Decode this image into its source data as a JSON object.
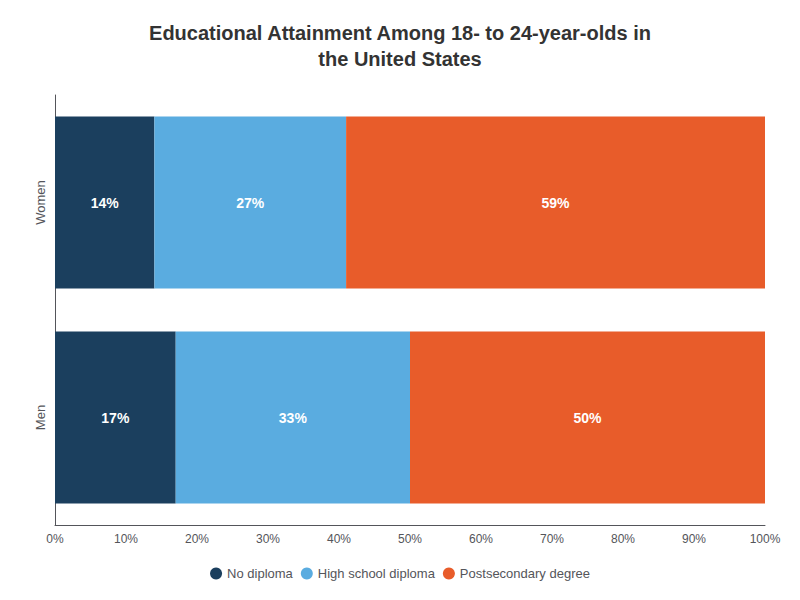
{
  "chart_data": {
    "type": "bar",
    "title": "Educational Attainment Among 18- to 24-year-olds in\nthe United States",
    "orientation": "horizontal",
    "stacked": true,
    "data_labels": true,
    "grid": false,
    "legend": "bottom",
    "categories": [
      "Men",
      "Women"
    ],
    "series": [
      {
        "name": "No diploma",
        "color": "#1b3f5e",
        "values": [
          17,
          14
        ],
        "value_labels": [
          "17%",
          "14%"
        ]
      },
      {
        "name": "High school diploma",
        "color": "#5aace0",
        "values": [
          33,
          27
        ],
        "value_labels": [
          "33%",
          "27%"
        ]
      },
      {
        "name": "Postsecondary degree",
        "color": "#e85c2a",
        "values": [
          50,
          59
        ],
        "value_labels": [
          "50%",
          "59%"
        ]
      }
    ],
    "xlim": [
      0,
      100
    ],
    "xticks": [
      {
        "value": 0,
        "label": "0%"
      },
      {
        "value": 10,
        "label": "10%"
      },
      {
        "value": 20,
        "label": "20%"
      },
      {
        "value": 30,
        "label": "30%"
      },
      {
        "value": 40,
        "label": "40%"
      },
      {
        "value": 50,
        "label": "50%"
      },
      {
        "value": 60,
        "label": "60%"
      },
      {
        "value": 70,
        "label": "70%"
      },
      {
        "value": 80,
        "label": "80%"
      },
      {
        "value": 90,
        "label": "90%"
      },
      {
        "value": 100,
        "label": "100%"
      }
    ]
  }
}
